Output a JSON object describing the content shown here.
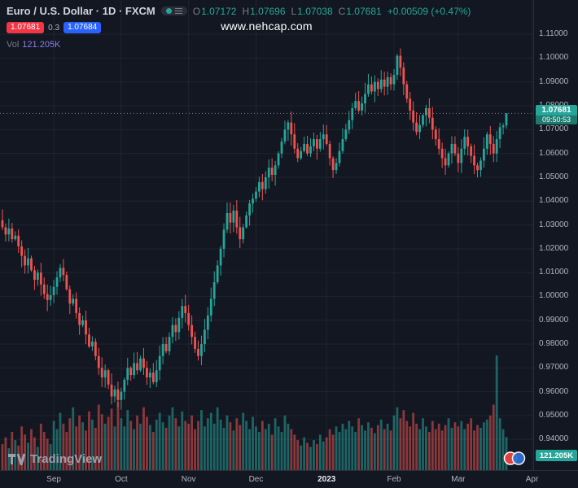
{
  "header": {
    "symbol_title": "Euro / U.S. Dollar · 1D · FXCM",
    "ohlc": {
      "o_label": "O",
      "o": "1.07172",
      "h_label": "H",
      "h": "1.07696",
      "l_label": "L",
      "l": "1.07038",
      "c_label": "C",
      "c": "1.07681",
      "change": "+0.00509 (+0.47%)"
    },
    "bid": "1.07681",
    "spread": "0.3",
    "ask": "1.07684",
    "vol_label": "Vol",
    "vol_value": "121.205K"
  },
  "watermark": "www.nehcap.com",
  "price_scale": {
    "current_price_label": "1.07681",
    "countdown": "09:50:53",
    "volume_badge": "121.205K"
  },
  "footer": {
    "logo_text": "TradingView"
  },
  "colors": {
    "background": "#131722",
    "up": "#26a69a",
    "down": "#ef5350",
    "up_vol": "rgba(38,166,154,0.55)",
    "down_vol": "rgba(239,83,80,0.55)",
    "bid_bg": "#f23645",
    "ask_bg": "#2962ff",
    "price_badge_bg": "#26a69a",
    "text": "#b2b5be"
  },
  "chart_data": {
    "type": "candlestick_with_volume",
    "title": "Euro / U.S. Dollar",
    "symbol": "EUR/USD",
    "interval": "1D",
    "exchange": "FXCM",
    "current_price": 1.07681,
    "last_candle": {
      "open": 1.07172,
      "high": 1.07696,
      "low": 1.07038,
      "close": 1.07681
    },
    "first_open": 1.032,
    "ylim": [
      0.9271,
      1.1244
    ],
    "y_ticks": [
      "1.11000",
      "1.10000",
      "1.09000",
      "1.08000",
      "1.07000",
      "1.06000",
      "1.05000",
      "1.04000",
      "1.03000",
      "1.02000",
      "1.01000",
      "1.00000",
      "0.99000",
      "0.98000",
      "0.97000",
      "0.96000",
      "0.95000",
      "0.94000"
    ],
    "x_labels": [
      {
        "text": "Sep",
        "i": 16
      },
      {
        "text": "Oct",
        "i": 37
      },
      {
        "text": "Nov",
        "i": 58
      },
      {
        "text": "Dec",
        "i": 79
      },
      {
        "text": "2023",
        "i": 101,
        "highlight": true
      },
      {
        "text": "Feb",
        "i": 122
      },
      {
        "text": "Mar",
        "i": 142
      },
      {
        "text": "Apr",
        "i": 165
      }
    ],
    "closes": [
      1.029,
      1.026,
      1.0285,
      1.024,
      1.0255,
      1.021,
      1.017,
      1.013,
      1.016,
      1.011,
      1.007,
      1.01,
      1.005,
      1.001,
      0.9985,
      1.0005,
      1.004,
      1.008,
      1.012,
      1.009,
      1.003,
      0.997,
      0.999,
      0.993,
      0.988,
      0.99,
      0.984,
      0.979,
      0.981,
      0.975,
      0.97,
      0.966,
      0.969,
      0.963,
      0.958,
      0.961,
      0.9565,
      0.96,
      0.965,
      0.97,
      0.967,
      0.972,
      0.969,
      0.974,
      0.97,
      0.966,
      0.968,
      0.964,
      0.969,
      0.975,
      0.98,
      0.977,
      0.983,
      0.988,
      0.985,
      0.991,
      0.996,
      0.993,
      0.988,
      0.983,
      0.978,
      0.975,
      0.98,
      0.986,
      0.992,
      0.999,
      1.006,
      1.013,
      1.02,
      1.028,
      1.035,
      1.031,
      1.036,
      1.029,
      1.024,
      1.029,
      1.034,
      1.039,
      1.041,
      1.044,
      1.048,
      1.045,
      1.05,
      1.054,
      1.051,
      1.055,
      1.06,
      1.065,
      1.07,
      1.073,
      1.068,
      1.062,
      1.058,
      1.061,
      1.064,
      1.06,
      1.063,
      1.066,
      1.062,
      1.066,
      1.068,
      1.064,
      1.058,
      1.053,
      1.056,
      1.061,
      1.066,
      1.07,
      1.074,
      1.079,
      1.082,
      1.078,
      1.081,
      1.085,
      1.089,
      1.086,
      1.09,
      1.087,
      1.091,
      1.088,
      1.092,
      1.089,
      1.093,
      1.101,
      1.096,
      1.089,
      1.083,
      1.078,
      1.073,
      1.069,
      1.072,
      1.076,
      1.079,
      1.075,
      1.07,
      1.066,
      1.062,
      1.058,
      1.055,
      1.06,
      1.064,
      1.06,
      1.056,
      1.062,
      1.067,
      1.063,
      1.059,
      1.055,
      1.053,
      1.057,
      1.062,
      1.068,
      1.064,
      1.06,
      1.066,
      1.071,
      1.0717,
      1.07681
    ],
    "volumes_k": [
      95,
      120,
      80,
      140,
      110,
      90,
      160,
      130,
      100,
      150,
      120,
      85,
      170,
      140,
      115,
      95,
      180,
      150,
      210,
      170,
      140,
      190,
      230,
      160,
      200,
      175,
      145,
      215,
      185,
      155,
      240,
      205,
      170,
      195,
      225,
      160,
      250,
      190,
      160,
      220,
      180,
      150,
      200,
      170,
      230,
      195,
      165,
      140,
      185,
      210,
      175,
      155,
      200,
      230,
      190,
      160,
      215,
      180,
      170,
      200,
      150,
      180,
      220,
      160,
      190,
      210,
      170,
      230,
      185,
      155,
      200,
      175,
      145,
      190,
      165,
      210,
      180,
      150,
      195,
      160,
      140,
      180,
      150,
      170,
      130,
      190,
      160,
      140,
      200,
      170,
      150,
      130,
      110,
      90,
      120,
      100,
      85,
      110,
      95,
      130,
      105,
      120,
      150,
      130,
      160,
      140,
      170,
      150,
      180,
      160,
      140,
      190,
      165,
      145,
      175,
      155,
      135,
      165,
      185,
      150,
      170,
      145,
      200,
      230,
      190,
      220,
      180,
      160,
      210,
      170,
      150,
      190,
      160,
      140,
      180,
      150,
      170,
      145,
      165,
      190,
      155,
      175,
      160,
      180,
      150,
      170,
      190,
      145,
      165,
      155,
      175,
      185,
      200,
      240,
      420,
      190,
      150,
      121.205
    ]
  }
}
